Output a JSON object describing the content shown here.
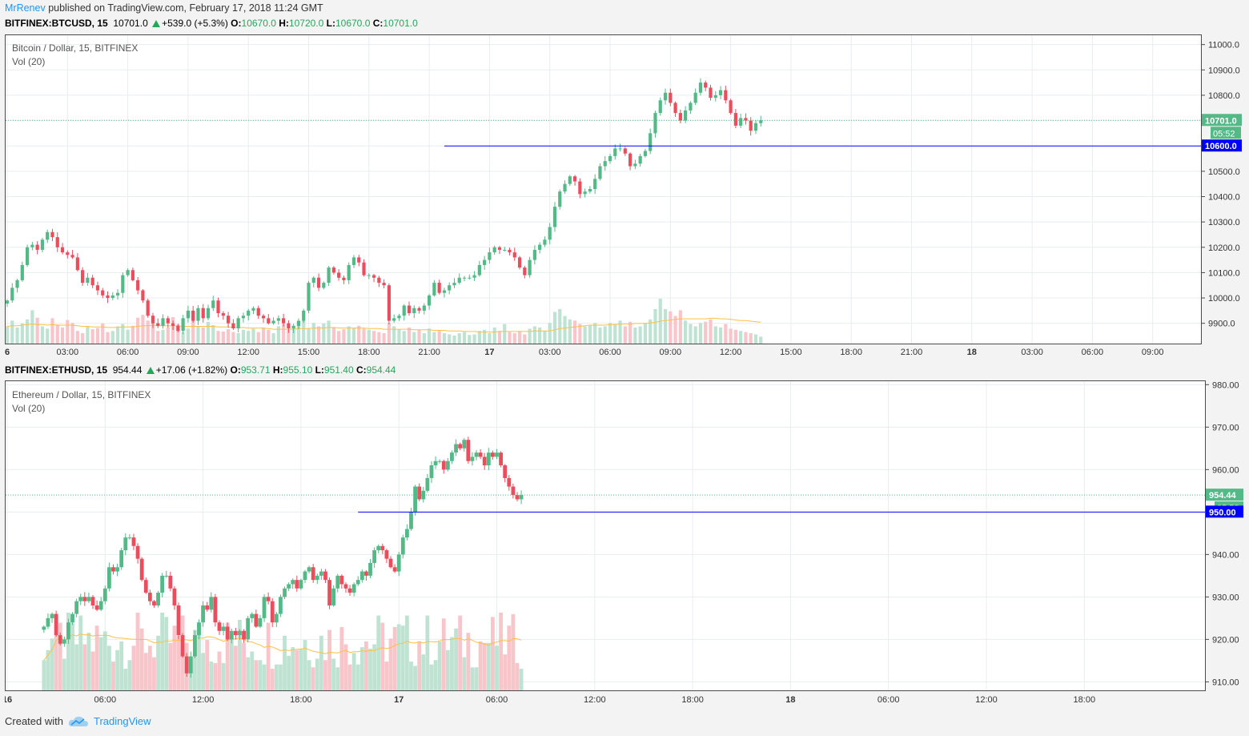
{
  "publish": {
    "author": "MrRenev",
    "text": "published on TradingView.com, February 17, 2018 11:24 GMT"
  },
  "footer": {
    "created_with": "Created with",
    "brand": "TradingView"
  },
  "colors": {
    "up": "#53b987",
    "down": "#eb4d5c",
    "up_volume": "#bfe3d3",
    "down_volume": "#f8c5cb",
    "volume_ma": "#ffc042",
    "alert_line": "#0000ff",
    "price_label": "#53b987"
  },
  "chart_data": [
    {
      "type": "candlestick",
      "header": {
        "symbol": "BITFINEX:BTCUSD, 15",
        "last": "10701.0",
        "change": "+539.0 (+5.3%)",
        "o_label": "O:",
        "o": "10670.0",
        "h_label": "H:",
        "h": "10720.0",
        "l_label": "L:",
        "l": "10670.0",
        "c_label": "C:",
        "c": "10701.0"
      },
      "title": "Bitcoin / Dollar, 15, BITFINEX",
      "indicator": "Vol (20)",
      "y_ticks": [
        "9900.0",
        "10000.0",
        "10100.0",
        "10200.0",
        "10300.0",
        "10400.0",
        "10500.0",
        "10600.0",
        "10700.0",
        "10800.0",
        "10900.0",
        "11000.0"
      ],
      "ylim": [
        9820,
        11040
      ],
      "x_ticks": [
        "6",
        "03:00",
        "06:00",
        "09:00",
        "12:00",
        "15:00",
        "18:00",
        "21:00",
        "17",
        "03:00",
        "06:00",
        "09:00",
        "12:00",
        "15:00",
        "18:00",
        "21:00",
        "18",
        "03:00",
        "06:00",
        "09:00"
      ],
      "last_price_label": "10701.0",
      "countdown": "05:52",
      "alert_level": 10600,
      "alert_label": "10600.0",
      "alert_start_hours": 21.75,
      "first_bar_hours": 0,
      "bar_minutes": 15,
      "closes": [
        9990,
        10040,
        10070,
        10130,
        10200,
        10210,
        10190,
        10230,
        10260,
        10240,
        10200,
        10180,
        10170,
        10160,
        10110,
        10060,
        10080,
        10050,
        10030,
        10010,
        10000,
        10010,
        10020,
        10090,
        10110,
        10070,
        10030,
        9990,
        9930,
        9900,
        9890,
        9920,
        9900,
        9890,
        9870,
        9920,
        9950,
        9910,
        9960,
        9920,
        9960,
        9990,
        9940,
        9930,
        9900,
        9880,
        9920,
        9930,
        9950,
        9960,
        9930,
        9920,
        9900,
        9910,
        9920,
        9900,
        9880,
        9890,
        9910,
        9950,
        10060,
        10080,
        10040,
        10060,
        10120,
        10100,
        10080,
        10070,
        10130,
        10160,
        10140,
        10090,
        10090,
        10080,
        10060,
        10050,
        9910,
        9920,
        9930,
        9970,
        9940,
        9960,
        9950,
        9970,
        10010,
        10060,
        10020,
        10030,
        10050,
        10060,
        10080,
        10080,
        10080,
        10090,
        10130,
        10150,
        10180,
        10200,
        10190,
        10190,
        10180,
        10160,
        10120,
        10090,
        10150,
        10190,
        10210,
        10230,
        10280,
        10360,
        10420,
        10450,
        10480,
        10460,
        10410,
        10420,
        10430,
        10470,
        10520,
        10540,
        10560,
        10590,
        10590,
        10570,
        10520,
        10530,
        10560,
        10580,
        10650,
        10730,
        10780,
        10810,
        10770,
        10730,
        10700,
        10740,
        10770,
        10810,
        10850,
        10830,
        10790,
        10800,
        10820,
        10780,
        10730,
        10680,
        10710,
        10700,
        10660,
        10690,
        10701
      ],
      "volumes": [
        30,
        40,
        28,
        35,
        42,
        58,
        45,
        30,
        26,
        44,
        33,
        28,
        41,
        36,
        22,
        18,
        30,
        25,
        27,
        35,
        20,
        22,
        30,
        34,
        24,
        31,
        45,
        50,
        40,
        35,
        22,
        24,
        28,
        46,
        33,
        20,
        26,
        40,
        30,
        28,
        38,
        32,
        22,
        21,
        25,
        20,
        18,
        24,
        22,
        26,
        20,
        28,
        24,
        18,
        30,
        34,
        25,
        28,
        38,
        42,
        27,
        36,
        30,
        35,
        40,
        28,
        22,
        25,
        30,
        27,
        31,
        26,
        24,
        22,
        20,
        18,
        36,
        30,
        25,
        22,
        28,
        20,
        24,
        18,
        26,
        20,
        22,
        18,
        16,
        14,
        18,
        20,
        15,
        16,
        22,
        24,
        18,
        28,
        22,
        34,
        20,
        18,
        22,
        16,
        26,
        30,
        28,
        22,
        36,
        55,
        60,
        48,
        42,
        40,
        34,
        30,
        32,
        36,
        28,
        30,
        36,
        34,
        40,
        30,
        38,
        28,
        30,
        36,
        42,
        60,
        78,
        60,
        56,
        48,
        58,
        40,
        34,
        30,
        36,
        38,
        42,
        30,
        28,
        34,
        26,
        24,
        22,
        20,
        18,
        16,
        12
      ],
      "volume_ma": [
        30,
        31,
        31,
        32,
        33,
        34,
        33,
        33,
        32,
        33,
        32,
        32,
        32,
        32,
        31,
        30,
        30,
        29,
        29,
        29,
        28,
        28,
        28,
        29,
        29,
        29,
        30,
        31,
        31,
        32,
        31,
        31,
        31,
        31,
        31,
        30,
        30,
        30,
        30,
        30,
        30,
        30,
        29,
        29,
        29,
        28,
        28,
        28,
        27,
        27,
        27,
        27,
        26,
        25,
        25,
        25,
        25,
        25,
        26,
        26,
        26,
        27,
        27,
        27,
        28,
        28,
        27,
        27,
        27,
        27,
        27,
        27,
        26,
        26,
        26,
        25,
        25,
        25,
        25,
        25,
        25,
        24,
        24,
        24,
        24,
        23,
        23,
        23,
        22,
        22,
        22,
        21,
        21,
        21,
        20,
        20,
        20,
        20,
        21,
        21,
        21,
        21,
        21,
        21,
        21,
        22,
        22,
        22,
        22,
        24,
        26,
        27,
        28,
        29,
        30,
        31,
        32,
        32,
        32,
        32,
        33,
        33,
        34,
        34,
        34,
        35,
        35,
        35,
        36,
        37,
        39,
        40,
        41,
        42,
        43,
        43,
        43,
        43,
        43,
        43,
        44,
        44,
        43,
        43,
        42,
        41,
        40,
        40,
        39,
        38,
        37
      ]
    },
    {
      "type": "candlestick",
      "header": {
        "symbol": "BITFINEX:ETHUSD, 15",
        "last": "954.44",
        "change": "+17.06 (+1.82%)",
        "o_label": "O:",
        "o": "953.71",
        "h_label": "H:",
        "h": "955.10",
        "l_label": "L:",
        "l": "951.40",
        "c_label": "C:",
        "c": "954.44"
      },
      "title": "Ethereum / Dollar, 15, BITFINEX",
      "indicator": "Vol (20)",
      "y_ticks": [
        "910.00",
        "920.00",
        "930.00",
        "940.00",
        "950.00",
        "960.00",
        "970.00",
        "980.00"
      ],
      "ylim": [
        908,
        981
      ],
      "x_ticks": [
        "16",
        "06:00",
        "12:00",
        "18:00",
        "17",
        "06:00",
        "12:00",
        "18:00",
        "18",
        "06:00",
        "12:00",
        "18:00"
      ],
      "last_price_label": "954.44",
      "countdown": "05:52",
      "alert_level": 950,
      "alert_label": "950.00",
      "alert_start_hours": 39.5,
      "first_bar_hours": 20.25,
      "bar_minutes": 15,
      "closes": [
        923,
        925,
        926,
        921,
        919,
        920,
        924,
        926,
        929,
        930,
        929,
        930,
        928,
        927,
        929,
        932,
        937,
        936,
        937,
        941,
        944,
        944,
        942,
        939,
        934,
        931,
        929,
        928,
        931,
        935,
        935,
        932,
        928,
        921,
        916,
        912,
        916,
        921,
        924,
        928,
        927,
        930,
        924,
        922,
        923,
        920,
        922,
        921,
        922,
        920,
        925,
        926,
        923,
        925,
        930,
        929,
        924,
        926,
        930,
        932,
        933,
        934,
        932,
        934,
        936,
        937,
        934,
        935,
        936,
        934,
        928,
        932,
        935,
        933,
        932,
        931,
        933,
        934,
        936,
        935,
        938,
        941,
        942,
        941,
        939,
        937,
        936,
        940,
        944,
        946,
        950,
        956,
        953,
        955,
        958,
        961,
        962,
        962,
        960,
        962,
        964,
        966,
        965,
        967,
        962,
        963,
        964,
        963,
        961,
        964,
        963,
        964,
        961,
        958,
        956,
        954,
        953,
        954
      ]
    }
  ]
}
